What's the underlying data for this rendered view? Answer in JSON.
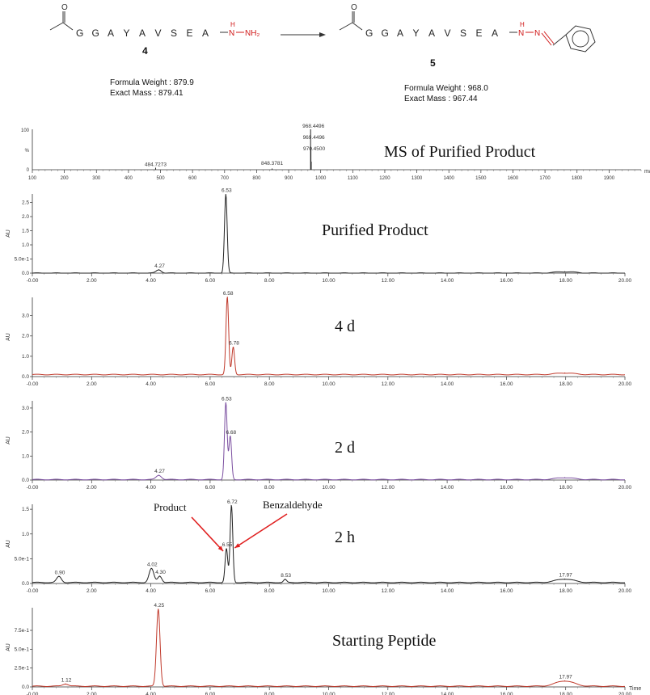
{
  "scheme": {
    "reactant": {
      "sequence": [
        "G",
        "G",
        "A",
        "Y",
        "A",
        "V",
        "S",
        "E",
        "A"
      ],
      "hydrazide": {
        "nh_h": "H",
        "n1": "N",
        "n2": "NH₂"
      },
      "compound_number": "4",
      "formula_weight_label": "Formula Weight : 879.9",
      "exact_mass_label": "Exact Mass : 879.41"
    },
    "product": {
      "sequence": [
        "G",
        "G",
        "A",
        "Y",
        "A",
        "V",
        "S",
        "E",
        "A"
      ],
      "hydrazone": {
        "nh_h": "H",
        "n1": "N",
        "n2": "N"
      },
      "compound_number": "5",
      "formula_weight_label": "Formula Weight : 968.0",
      "exact_mass_label": "Exact Mass : 967.44"
    },
    "carbonyl_o": "O",
    "colors": {
      "bond": "#333333",
      "hydrazide": "#d01818"
    }
  },
  "chart_data": [
    {
      "type": "line",
      "title": "MS of Purified Product",
      "xlabel": "m/z",
      "xlim": [
        100,
        2000
      ],
      "ylim": [
        0,
        100
      ],
      "y_ticks": [
        "100",
        "%",
        "0"
      ],
      "x_ticks": [
        100,
        200,
        300,
        400,
        500,
        600,
        700,
        800,
        900,
        1000,
        1100,
        1200,
        1300,
        1400,
        1500,
        1600,
        1700,
        1800,
        1900
      ],
      "peaks": [
        {
          "x": 484.7273,
          "y": 5,
          "label": "484.7273"
        },
        {
          "x": 848.3781,
          "y": 3,
          "label": "848.3781"
        },
        {
          "x": 968.4496,
          "y": 100,
          "label": "968.4496"
        },
        {
          "x": 969.4496,
          "y": 55,
          "label": "969.4496"
        },
        {
          "x": 970.45,
          "y": 20,
          "label": "970.4500"
        }
      ],
      "color": "#222222"
    },
    {
      "type": "line",
      "title": "Purified Product",
      "ylabel": "AU",
      "xlim": [
        0,
        20
      ],
      "ylim": [
        0,
        2.8
      ],
      "y_ticks": [
        {
          "v": 0,
          "l": "0.0"
        },
        {
          "v": 0.5,
          "l": "5.0e-1"
        },
        {
          "v": 1,
          "l": "1.0"
        },
        {
          "v": 1.5,
          "l": "1.5"
        },
        {
          "v": 2,
          "l": "2.0"
        },
        {
          "v": 2.5,
          "l": "2.5"
        }
      ],
      "x_ticks": [
        {
          "v": 0,
          "l": "-0.00"
        },
        {
          "v": 2,
          "l": "2.00"
        },
        {
          "v": 4,
          "l": "4.00"
        },
        {
          "v": 6,
          "l": "6.00"
        },
        {
          "v": 8,
          "l": "8.00"
        },
        {
          "v": 10,
          "l": "10.00"
        },
        {
          "v": 12,
          "l": "12.00"
        },
        {
          "v": 14,
          "l": "14.00"
        },
        {
          "v": 16,
          "l": "16.00"
        },
        {
          "v": 18,
          "l": "18.00"
        },
        {
          "v": 20,
          "l": "20.00"
        }
      ],
      "peaks": [
        {
          "x": 4.27,
          "y": 0.12,
          "w": 0.09,
          "label": "4.27"
        },
        {
          "x": 6.53,
          "y": 2.78,
          "w": 0.045,
          "label": "6.53"
        },
        {
          "x": 17.97,
          "y": 0.05,
          "w": 0.35
        }
      ],
      "baseline": 0.0,
      "color": "#222222"
    },
    {
      "type": "line",
      "title": "4 d",
      "ylabel": "AU",
      "xlim": [
        0,
        20
      ],
      "ylim": [
        0,
        3.9
      ],
      "y_ticks": [
        {
          "v": 0,
          "l": "0.0"
        },
        {
          "v": 1,
          "l": "1.0"
        },
        {
          "v": 2,
          "l": "2.0"
        },
        {
          "v": 3,
          "l": "3.0"
        }
      ],
      "x_ticks": [
        {
          "v": 0,
          "l": "-0.00"
        },
        {
          "v": 2,
          "l": "2.00"
        },
        {
          "v": 4,
          "l": "4.00"
        },
        {
          "v": 6,
          "l": "6.00"
        },
        {
          "v": 8,
          "l": "8.00"
        },
        {
          "v": 10,
          "l": "10.00"
        },
        {
          "v": 12,
          "l": "12.00"
        },
        {
          "v": 14,
          "l": "14.00"
        },
        {
          "v": 16,
          "l": "16.00"
        },
        {
          "v": 18,
          "l": "18.00"
        },
        {
          "v": 20,
          "l": "20.00"
        }
      ],
      "peaks": [
        {
          "x": 6.58,
          "y": 3.8,
          "w": 0.045,
          "label": "6.58"
        },
        {
          "x": 6.78,
          "y": 1.35,
          "w": 0.045,
          "label": "6.78"
        },
        {
          "x": 17.97,
          "y": 0.08,
          "w": 0.3
        }
      ],
      "baseline": 0.1,
      "color": "#c0392b"
    },
    {
      "type": "line",
      "title": "2 d",
      "ylabel": "AU",
      "xlim": [
        0,
        20
      ],
      "ylim": [
        0,
        3.3
      ],
      "y_ticks": [
        {
          "v": 0,
          "l": "0.0"
        },
        {
          "v": 1,
          "l": "1.0"
        },
        {
          "v": 2,
          "l": "2.0"
        },
        {
          "v": 3,
          "l": "3.0"
        }
      ],
      "x_ticks": [
        {
          "v": 0,
          "l": "-0.00"
        },
        {
          "v": 2,
          "l": "2.00"
        },
        {
          "v": 4,
          "l": "4.00"
        },
        {
          "v": 6,
          "l": "6.00"
        },
        {
          "v": 8,
          "l": "8.00"
        },
        {
          "v": 10,
          "l": "10.00"
        },
        {
          "v": 12,
          "l": "12.00"
        },
        {
          "v": 14,
          "l": "14.00"
        },
        {
          "v": 16,
          "l": "16.00"
        },
        {
          "v": 18,
          "l": "18.00"
        },
        {
          "v": 20,
          "l": "20.00"
        }
      ],
      "peaks": [
        {
          "x": 4.27,
          "y": 0.18,
          "w": 0.09,
          "label": "4.27"
        },
        {
          "x": 6.53,
          "y": 3.2,
          "w": 0.045,
          "label": "6.53"
        },
        {
          "x": 6.68,
          "y": 1.8,
          "w": 0.045,
          "label": "6.68"
        },
        {
          "x": 17.97,
          "y": 0.08,
          "w": 0.3
        }
      ],
      "baseline": 0.02,
      "color": "#7b4fa0"
    },
    {
      "type": "line",
      "title": "2 h",
      "ylabel": "AU",
      "xlim": [
        0,
        20
      ],
      "ylim": [
        0,
        1.6
      ],
      "y_ticks": [
        {
          "v": 0,
          "l": "0.0"
        },
        {
          "v": 0.5,
          "l": "5.0e-1"
        },
        {
          "v": 1,
          "l": "1.0"
        },
        {
          "v": 1.5,
          "l": "1.5"
        }
      ],
      "x_ticks": [
        {
          "v": 0,
          "l": "-0.00"
        },
        {
          "v": 2,
          "l": "2.00"
        },
        {
          "v": 4,
          "l": "4.00"
        },
        {
          "v": 6,
          "l": "6.00"
        },
        {
          "v": 8,
          "l": "8.00"
        },
        {
          "v": 10,
          "l": "10.00"
        },
        {
          "v": 12,
          "l": "12.00"
        },
        {
          "v": 14,
          "l": "14.00"
        },
        {
          "v": 16,
          "l": "16.00"
        },
        {
          "v": 18,
          "l": "18.00"
        },
        {
          "v": 20,
          "l": "20.00"
        }
      ],
      "peaks": [
        {
          "x": 0.9,
          "y": 0.12,
          "w": 0.08,
          "label": "0.90"
        },
        {
          "x": 4.02,
          "y": 0.28,
          "w": 0.08,
          "label": "4.02"
        },
        {
          "x": 4.3,
          "y": 0.13,
          "w": 0.07,
          "label": "4.30"
        },
        {
          "x": 6.55,
          "y": 0.68,
          "w": 0.045,
          "label": "6.55"
        },
        {
          "x": 6.72,
          "y": 1.55,
          "w": 0.045,
          "label": "6.72"
        },
        {
          "x": 8.53,
          "y": 0.06,
          "w": 0.05,
          "label": "8.53"
        },
        {
          "x": 17.97,
          "y": 0.07,
          "w": 0.3,
          "label": "17.97"
        }
      ],
      "baseline": 0.02,
      "color": "#222222",
      "annotations": [
        {
          "text": "Product",
          "target_peak": "6.55"
        },
        {
          "text": "Benzaldehyde",
          "target_peak": "6.72"
        }
      ]
    },
    {
      "type": "line",
      "title": "Starting Peptide",
      "ylabel": "AU",
      "xlabel": "Time",
      "xlim": [
        0,
        20
      ],
      "ylim": [
        0,
        1.05
      ],
      "y_ticks": [
        {
          "v": 0,
          "l": "0.0"
        },
        {
          "v": 0.25,
          "l": "2.5e-1"
        },
        {
          "v": 0.5,
          "l": "5.0e-1"
        },
        {
          "v": 0.75,
          "l": "7.5e-1"
        }
      ],
      "x_ticks": [
        {
          "v": 0,
          "l": "-0.00"
        },
        {
          "v": 2,
          "l": "2.00"
        },
        {
          "v": 4,
          "l": "4.00"
        },
        {
          "v": 6,
          "l": "6.00"
        },
        {
          "v": 8,
          "l": "8.00"
        },
        {
          "v": 10,
          "l": "10.00"
        },
        {
          "v": 12,
          "l": "12.00"
        },
        {
          "v": 14,
          "l": "14.00"
        },
        {
          "v": 16,
          "l": "16.00"
        },
        {
          "v": 18,
          "l": "18.00"
        },
        {
          "v": 20,
          "l": "20.00"
        }
      ],
      "peaks": [
        {
          "x": 1.12,
          "y": 0.03,
          "w": 0.1,
          "label": "1.12"
        },
        {
          "x": 4.25,
          "y": 1.02,
          "w": 0.06,
          "label": "4.25"
        },
        {
          "x": 17.97,
          "y": 0.07,
          "w": 0.3,
          "label": "17.97"
        }
      ],
      "baseline": 0.01,
      "color": "#c0392b"
    }
  ]
}
